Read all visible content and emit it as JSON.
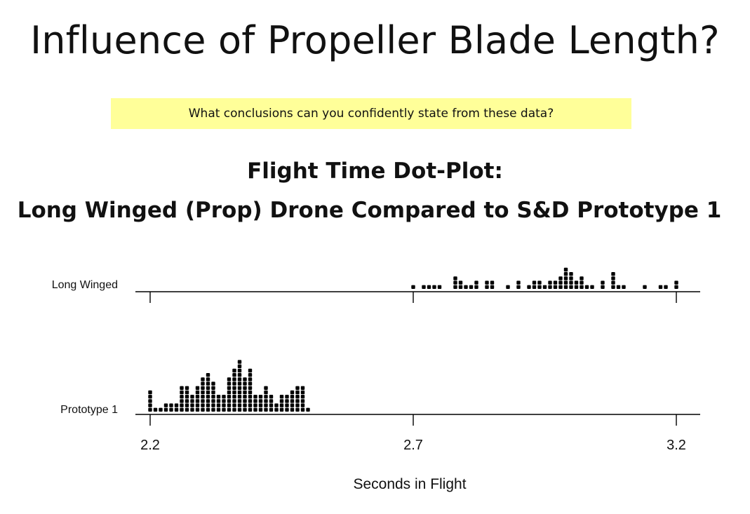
{
  "slide": {
    "title": "Influence of Propeller Blade Length?",
    "prompt": "What conclusions can you confidently state from these data?"
  },
  "chart_data": {
    "type": "dot-plot",
    "title_line1": "Flight Time Dot-Plot:",
    "title_line2": "Long Winged (Prop) Drone Compared to S&D Prototype 1",
    "xlabel": "Seconds in Flight",
    "xlim": [
      2.2,
      3.2
    ],
    "bin_width": 0.01,
    "ticks": [
      {
        "value": 2.2,
        "label": "2.2"
      },
      {
        "value": 2.7,
        "label": "2.7"
      },
      {
        "value": 3.2,
        "label": "3.2"
      }
    ],
    "colors": {
      "dot": "#000000",
      "axis": "#000000"
    },
    "series": [
      {
        "name": "Long Winged",
        "bins": [
          [
            2.7,
            1
          ],
          [
            2.72,
            1
          ],
          [
            2.73,
            1
          ],
          [
            2.74,
            1
          ],
          [
            2.75,
            1
          ],
          [
            2.78,
            3
          ],
          [
            2.79,
            2
          ],
          [
            2.8,
            1
          ],
          [
            2.81,
            1
          ],
          [
            2.82,
            2
          ],
          [
            2.84,
            2
          ],
          [
            2.85,
            2
          ],
          [
            2.88,
            1
          ],
          [
            2.9,
            2
          ],
          [
            2.92,
            1
          ],
          [
            2.93,
            2
          ],
          [
            2.94,
            2
          ],
          [
            2.95,
            1
          ],
          [
            2.96,
            2
          ],
          [
            2.97,
            2
          ],
          [
            2.98,
            3
          ],
          [
            2.99,
            5
          ],
          [
            3.0,
            4
          ],
          [
            3.01,
            2
          ],
          [
            3.02,
            3
          ],
          [
            3.03,
            1
          ],
          [
            3.04,
            1
          ],
          [
            3.06,
            2
          ],
          [
            3.08,
            4
          ],
          [
            3.09,
            1
          ],
          [
            3.1,
            1
          ],
          [
            3.14,
            1
          ],
          [
            3.17,
            1
          ],
          [
            3.18,
            1
          ],
          [
            3.2,
            2
          ]
        ]
      },
      {
        "name": "Prototype 1",
        "bins": [
          [
            2.2,
            5
          ],
          [
            2.21,
            1
          ],
          [
            2.22,
            1
          ],
          [
            2.23,
            2
          ],
          [
            2.24,
            2
          ],
          [
            2.25,
            2
          ],
          [
            2.26,
            6
          ],
          [
            2.27,
            6
          ],
          [
            2.28,
            4
          ],
          [
            2.29,
            6
          ],
          [
            2.3,
            8
          ],
          [
            2.31,
            9
          ],
          [
            2.32,
            7
          ],
          [
            2.33,
            4
          ],
          [
            2.34,
            4
          ],
          [
            2.35,
            8
          ],
          [
            2.36,
            10
          ],
          [
            2.37,
            12
          ],
          [
            2.38,
            8
          ],
          [
            2.39,
            10
          ],
          [
            2.4,
            4
          ],
          [
            2.41,
            4
          ],
          [
            2.42,
            6
          ],
          [
            2.43,
            4
          ],
          [
            2.44,
            2
          ],
          [
            2.45,
            4
          ],
          [
            2.46,
            4
          ],
          [
            2.47,
            5
          ],
          [
            2.48,
            6
          ],
          [
            2.49,
            6
          ],
          [
            2.5,
            1
          ]
        ]
      }
    ]
  }
}
